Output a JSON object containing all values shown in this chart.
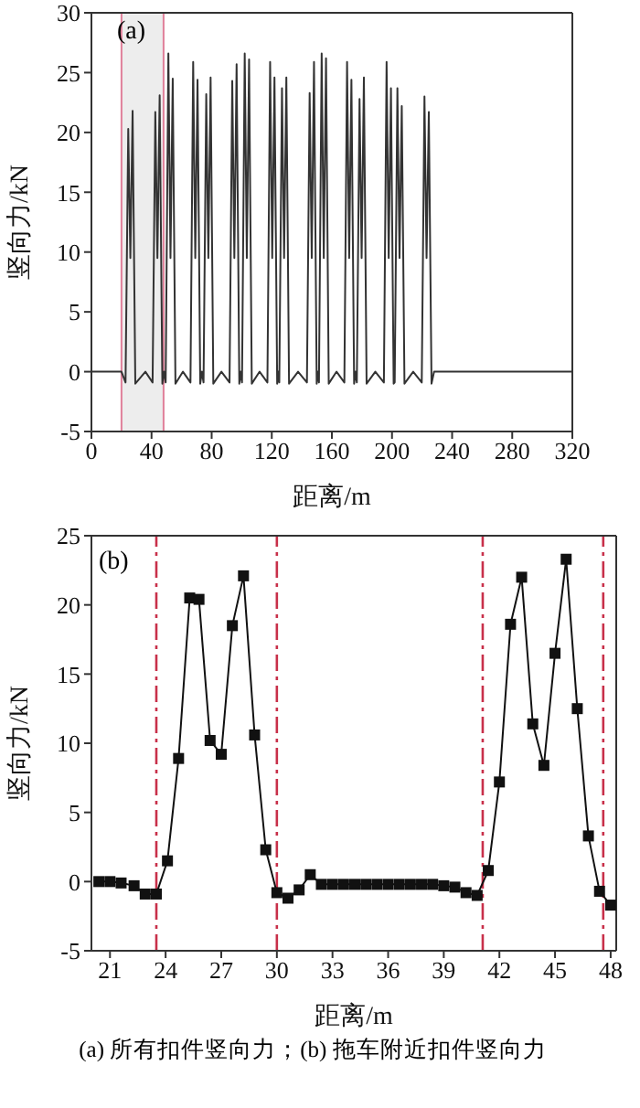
{
  "chart_data": [
    {
      "type": "line",
      "color": "#333333",
      "xlabel": "距离/m",
      "ylabel": "竖向力/kN",
      "annotations": [
        "(a)"
      ],
      "xlim": [
        0,
        320
      ],
      "xticks": [
        0,
        40,
        80,
        120,
        160,
        200,
        240,
        280,
        320
      ],
      "ylim": [
        -5,
        30
      ],
      "yticks": [
        -5,
        0,
        5,
        10,
        15,
        20,
        25,
        30
      ],
      "bands": [
        {
          "axis": "x",
          "from": 20,
          "to": 48,
          "color": "#ededed"
        }
      ],
      "x": [
        0,
        20,
        22.7,
        24.5,
        25.9,
        27.4,
        29.2,
        35.9,
        40.7,
        42.5,
        43.9,
        45.4,
        47.2,
        48.3,
        49.4,
        51.2,
        52.6,
        54.1,
        55.9,
        60.9,
        65.9,
        67.7,
        69.1,
        70.6,
        72.4,
        73.5,
        74.6,
        76.4,
        77.8,
        79.3,
        81.1,
        86.5,
        91.9,
        93.7,
        95.1,
        96.6,
        98.4,
        99.3,
        100.2,
        102.0,
        103.4,
        104.9,
        106.7,
        111.9,
        117.1,
        118.9,
        120.3,
        121.8,
        123.6,
        124.3,
        125.0,
        126.8,
        128.2,
        129.7,
        131.5,
        137.5,
        143.4,
        145.2,
        146.6,
        148.1,
        149.9,
        150.7,
        151.4,
        153.2,
        154.6,
        156.1,
        157.9,
        163.1,
        168.3,
        170.1,
        171.5,
        173.0,
        174.8,
        175.7,
        176.6,
        178.4,
        179.8,
        181.3,
        183.1,
        188.9,
        194.6,
        196.4,
        197.8,
        199.3,
        201.1,
        201.8,
        203.6,
        205.0,
        206.5,
        208.3,
        214.1,
        219.8,
        221.6,
        223.0,
        224.5,
        226.3,
        228,
        320
      ],
      "values": [
        0,
        0,
        -0.9,
        20.3,
        9.5,
        21.8,
        -1.0,
        0,
        -0.9,
        21.7,
        9.5,
        23.1,
        -1.0,
        0,
        -0.9,
        26.6,
        9.5,
        24.5,
        -1.0,
        0,
        -0.9,
        25.9,
        9.5,
        24.4,
        -1.0,
        0,
        -0.9,
        23.2,
        9.5,
        24.6,
        -1.0,
        0,
        -0.9,
        24.3,
        9.5,
        25.7,
        -1.0,
        0,
        -0.9,
        26.6,
        9.5,
        26.1,
        -1.0,
        0,
        -0.9,
        25.9,
        9.5,
        24.6,
        -1.0,
        0,
        -0.9,
        23.7,
        9.5,
        24.6,
        -1.0,
        0,
        -0.9,
        23.3,
        9.5,
        25.9,
        -1.0,
        0,
        -0.9,
        26.6,
        9.5,
        26.2,
        -1.0,
        0,
        -0.9,
        25.9,
        9.5,
        24.4,
        -1.0,
        0,
        -0.9,
        22.8,
        9.5,
        24.6,
        -1.0,
        0,
        -0.9,
        25.9,
        9.5,
        23.7,
        -1.0,
        -0.9,
        23.7,
        9.5,
        22.2,
        -1.0,
        0,
        -0.9,
        23.0,
        9.5,
        21.7,
        -1.0,
        0,
        0
      ]
    },
    {
      "type": "line",
      "color": "#111111",
      "marker": "square",
      "xlabel": "距离/m",
      "ylabel": "竖向力/kN",
      "annotations": [
        "(b)",
        "(a) 所有扣件竖向力；(b) 拖车附近扣件竖向力"
      ],
      "xlim": [
        20,
        48.3
      ],
      "xticks": [
        21,
        24,
        27,
        30,
        33,
        36,
        39,
        42,
        45,
        48
      ],
      "ylim": [
        -5,
        25
      ],
      "yticks": [
        -5,
        0,
        5,
        10,
        15,
        20,
        25
      ],
      "ref_lines": [
        {
          "axis": "x",
          "value": 23.5,
          "color": "#c8304a",
          "line_style": "dashed"
        },
        {
          "axis": "x",
          "value": 30.0,
          "color": "#c8304a",
          "line_style": "dashed"
        },
        {
          "axis": "x",
          "value": 41.1,
          "color": "#c8304a",
          "line_style": "dashed"
        },
        {
          "axis": "x",
          "value": 47.6,
          "color": "#c8304a",
          "line_style": "dashed"
        }
      ],
      "x": [
        20.4,
        21.0,
        21.6,
        22.3,
        22.9,
        23.5,
        24.1,
        24.7,
        25.3,
        25.8,
        26.4,
        27.0,
        27.6,
        28.2,
        28.8,
        29.4,
        30.0,
        30.6,
        31.2,
        31.8,
        32.4,
        33.0,
        33.6,
        34.2,
        34.8,
        35.4,
        36.0,
        36.6,
        37.2,
        37.8,
        38.4,
        39.0,
        39.6,
        40.2,
        40.8,
        41.4,
        42.0,
        42.6,
        43.2,
        43.8,
        44.4,
        45.0,
        45.6,
        46.2,
        46.8,
        47.4,
        48.0
      ],
      "values": [
        0,
        0,
        -0.1,
        -0.3,
        -0.9,
        -0.9,
        1.5,
        8.9,
        20.5,
        20.4,
        10.2,
        9.2,
        18.5,
        22.1,
        10.6,
        2.3,
        -0.8,
        -1.2,
        -0.6,
        0.5,
        -0.2,
        -0.2,
        -0.2,
        -0.2,
        -0.2,
        -0.2,
        -0.2,
        -0.2,
        -0.2,
        -0.2,
        -0.2,
        -0.3,
        -0.4,
        -0.8,
        -1.0,
        0.8,
        7.2,
        18.6,
        22.0,
        11.4,
        8.4,
        16.5,
        23.3,
        12.5,
        3.3,
        -0.7,
        -1.7
      ]
    }
  ]
}
